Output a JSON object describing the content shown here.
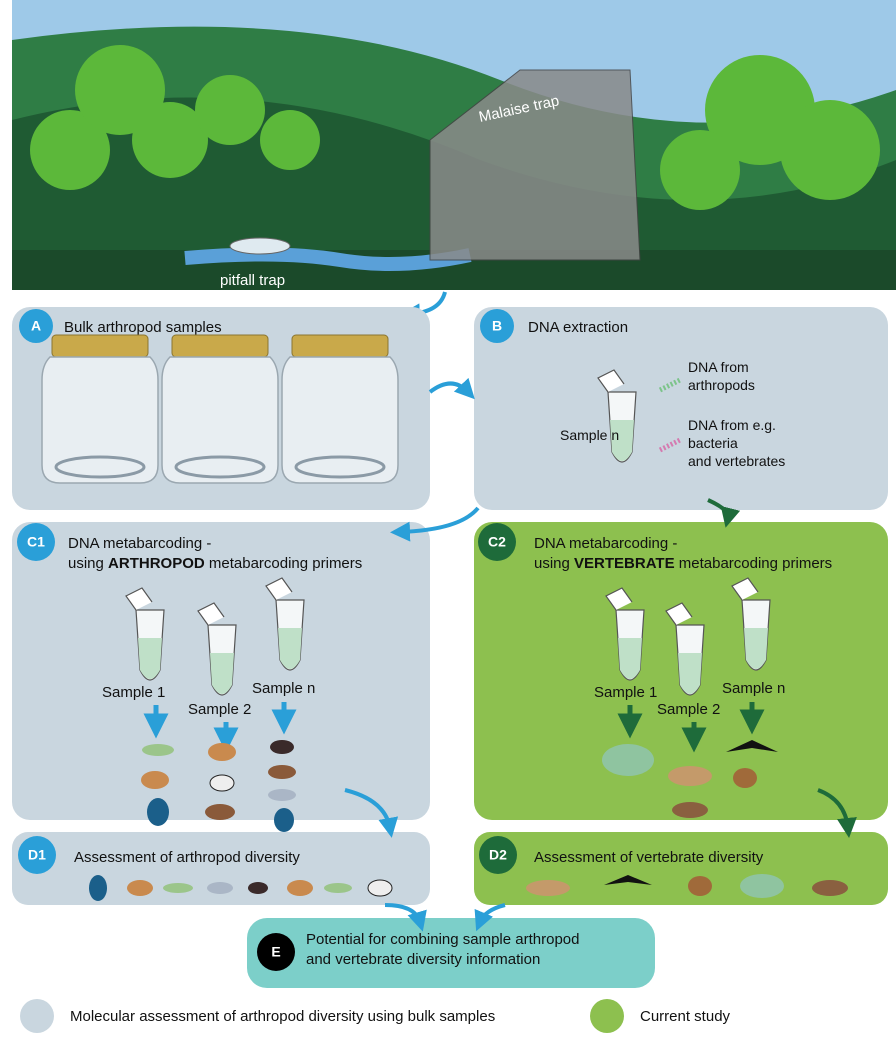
{
  "scene": {
    "malaise_label": "Malaise trap",
    "pitfall_label": "pitfall trap"
  },
  "panels": {
    "A": {
      "badge": "A",
      "title": "Bulk arthropod samples"
    },
    "B": {
      "badge": "B",
      "title": "DNA extraction",
      "sample": "Sample n",
      "dna_arthropods": [
        "DNA from",
        "arthropods"
      ],
      "dna_other": [
        "DNA from e.g.",
        "bacteria",
        "and vertebrates"
      ]
    },
    "C1": {
      "badge": "C1",
      "line1": "DNA metabarcoding -",
      "prefix": "using",
      "emphasis": "ARTHROPOD",
      "suffix": "metabarcoding primers",
      "samples": [
        "Sample 1",
        "Sample 2",
        "Sample n"
      ]
    },
    "C2": {
      "badge": "C2",
      "line1": "DNA metabarcoding -",
      "prefix": "using",
      "emphasis": "VERTEBRATE",
      "suffix": "metabarcoding primers",
      "samples": [
        "Sample 1",
        "Sample 2",
        "Sample n"
      ]
    },
    "D1": {
      "badge": "D1",
      "title": "Assessment of arthropod diversity"
    },
    "D2": {
      "badge": "D2",
      "title": "Assessment of vertebrate diversity"
    },
    "E": {
      "badge": "E",
      "lines": [
        "Potential for combining sample arthropod",
        "and vertebrate diversity information"
      ]
    }
  },
  "legend": {
    "grey": "Molecular assessment of arthropod diversity using bulk samples",
    "green": "Current study"
  }
}
